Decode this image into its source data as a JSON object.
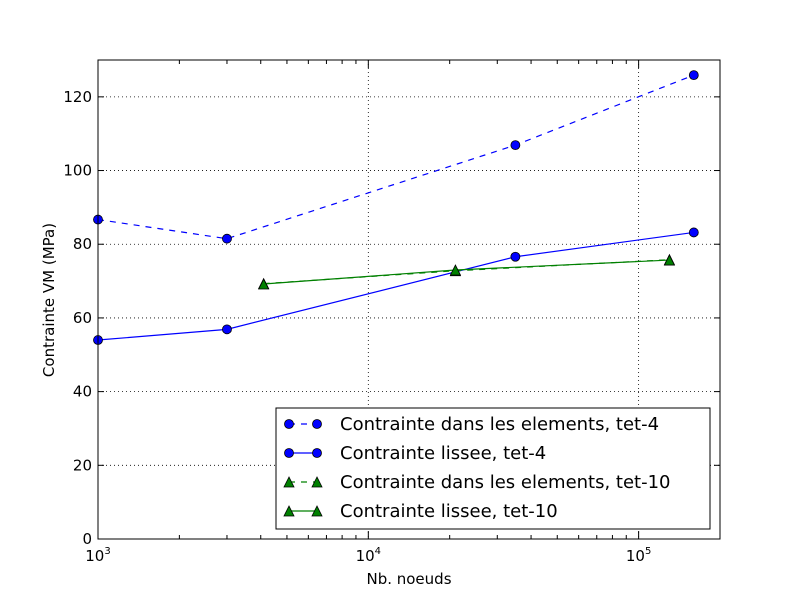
{
  "chart_data": {
    "type": "line",
    "title": "",
    "xlabel": "Nb. noeuds",
    "ylabel": "Contrainte VM (MPa)",
    "x_scale": "log",
    "xlim": [
      1000,
      200000
    ],
    "ylim": [
      0,
      130
    ],
    "x_ticks": [
      {
        "value": 1000,
        "base": "10",
        "exp": "3"
      },
      {
        "value": 10000,
        "base": "10",
        "exp": "4"
      },
      {
        "value": 100000,
        "base": "10",
        "exp": "5"
      }
    ],
    "y_ticks": [
      0,
      20,
      40,
      60,
      80,
      100,
      120
    ],
    "y_tick_labels": [
      "0",
      "20",
      "40",
      "60",
      "80",
      "100",
      "120"
    ],
    "grid": true,
    "legend_position": "lower-right",
    "series": [
      {
        "name": "Contrainte dans les elements, tet-4",
        "color": "#0000ff",
        "marker": "circle",
        "linestyle": "dashed",
        "x": [
          1000,
          3000,
          35000,
          160000
        ],
        "y": [
          86.7,
          81.5,
          106.9,
          125.9
        ]
      },
      {
        "name": "Contrainte lissee, tet-4",
        "color": "#0000ff",
        "marker": "circle",
        "linestyle": "solid",
        "x": [
          1000,
          3000,
          35000,
          160000
        ],
        "y": [
          54.0,
          56.9,
          76.6,
          83.2
        ]
      },
      {
        "name": "Contrainte dans les elements, tet-10",
        "color": "#008000",
        "marker": "triangle",
        "linestyle": "dashed",
        "x": [
          4100,
          21000,
          130000
        ],
        "y": [
          69.3,
          72.8,
          75.8
        ]
      },
      {
        "name": "Contrainte lissee, tet-10",
        "color": "#008000",
        "marker": "triangle",
        "linestyle": "solid",
        "x": [
          4100,
          21000,
          130000
        ],
        "y": [
          69.2,
          73.0,
          75.7
        ]
      }
    ]
  }
}
